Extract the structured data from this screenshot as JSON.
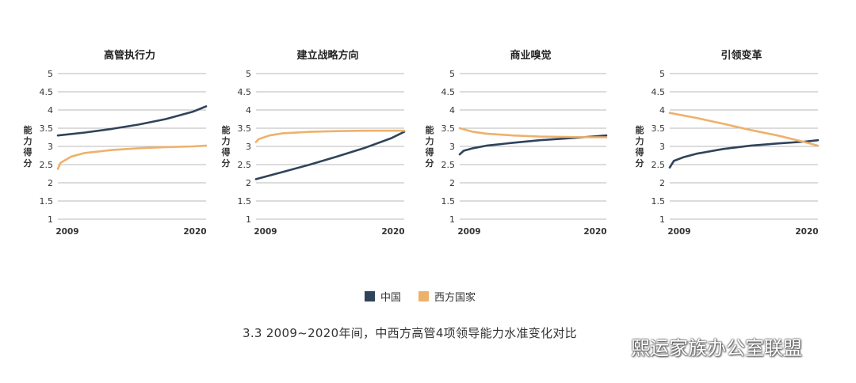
{
  "colors": {
    "china": "#2f435a",
    "west": "#eeb16c",
    "grid": "#b8b8b8"
  },
  "y_axis_label": [
    "能",
    "力",
    "得",
    "分"
  ],
  "legend": [
    {
      "label": "中国",
      "color": "#2f435a"
    },
    {
      "label": "西方国家",
      "color": "#eeb16c"
    }
  ],
  "caption": "3.3 2009~2020年间，中西方高管4项领导能力水准变化对比",
  "watermark": {
    "text": "熙运家族办公室联盟",
    "icon": "wechat-logo-icon"
  },
  "chart_data": [
    {
      "type": "line",
      "title": "高管执行力",
      "ylim": [
        1,
        5
      ],
      "yticks": [
        "1",
        "1.5",
        "2",
        "2.5",
        "3",
        "3.5",
        "4",
        "4.5",
        "5"
      ],
      "xticks": [
        "2009",
        "2020"
      ],
      "grid": true,
      "series": [
        {
          "name": "中国",
          "x": [
            2009,
            2011,
            2013,
            2015,
            2017,
            2019,
            2020
          ],
          "y": [
            3.3,
            3.38,
            3.48,
            3.6,
            3.75,
            3.95,
            4.1
          ]
        },
        {
          "name": "西方国家",
          "x": [
            2009,
            2009.2,
            2010,
            2011,
            2013,
            2015,
            2017,
            2019,
            2020
          ],
          "y": [
            2.38,
            2.55,
            2.72,
            2.82,
            2.9,
            2.95,
            2.98,
            3.0,
            3.02
          ]
        }
      ]
    },
    {
      "type": "line",
      "title": "建立战略方向",
      "ylim": [
        1,
        5
      ],
      "yticks": [
        "1",
        "1.5",
        "2",
        "2.5",
        "3",
        "3.5",
        "4",
        "4.5",
        "5"
      ],
      "xticks": [
        "2009",
        "2020"
      ],
      "grid": true,
      "series": [
        {
          "name": "中国",
          "x": [
            2009,
            2011,
            2013,
            2015,
            2017,
            2019,
            2020
          ],
          "y": [
            2.1,
            2.3,
            2.5,
            2.72,
            2.95,
            3.22,
            3.4
          ]
        },
        {
          "name": "西方国家",
          "x": [
            2009,
            2009.2,
            2010,
            2011,
            2013,
            2015,
            2017,
            2020
          ],
          "y": [
            3.12,
            3.2,
            3.3,
            3.36,
            3.4,
            3.42,
            3.43,
            3.43
          ]
        }
      ]
    },
    {
      "type": "line",
      "title": "商业嗅觉",
      "ylim": [
        1,
        5
      ],
      "yticks": [
        "1",
        "1.5",
        "2",
        "2.5",
        "3",
        "3.5",
        "4",
        "4.5",
        "5"
      ],
      "xticks": [
        "2009",
        "2020"
      ],
      "grid": true,
      "series": [
        {
          "name": "中国",
          "x": [
            2009,
            2009.3,
            2010,
            2011,
            2013,
            2015,
            2017,
            2019,
            2020
          ],
          "y": [
            2.78,
            2.88,
            2.95,
            3.02,
            3.1,
            3.17,
            3.22,
            3.27,
            3.3
          ]
        },
        {
          "name": "西方国家",
          "x": [
            2009,
            2010,
            2011,
            2013,
            2015,
            2017,
            2019,
            2020
          ],
          "y": [
            3.5,
            3.4,
            3.35,
            3.3,
            3.27,
            3.26,
            3.25,
            3.25
          ]
        }
      ]
    },
    {
      "type": "line",
      "title": "引领变革",
      "ylim": [
        1,
        5
      ],
      "yticks": [
        "1",
        "1.5",
        "2",
        "2.5",
        "3",
        "3.5",
        "4",
        "4.5",
        "5"
      ],
      "xticks": [
        "2009",
        "2020"
      ],
      "grid": true,
      "series": [
        {
          "name": "中国",
          "x": [
            2009,
            2009.3,
            2010,
            2011,
            2013,
            2015,
            2017,
            2019,
            2020
          ],
          "y": [
            2.42,
            2.6,
            2.7,
            2.8,
            2.93,
            3.02,
            3.08,
            3.13,
            3.17
          ]
        },
        {
          "name": "西方国家",
          "x": [
            2009,
            2011,
            2013,
            2015,
            2017,
            2019,
            2020
          ],
          "y": [
            3.92,
            3.78,
            3.62,
            3.45,
            3.3,
            3.12,
            3.02
          ]
        }
      ]
    }
  ]
}
